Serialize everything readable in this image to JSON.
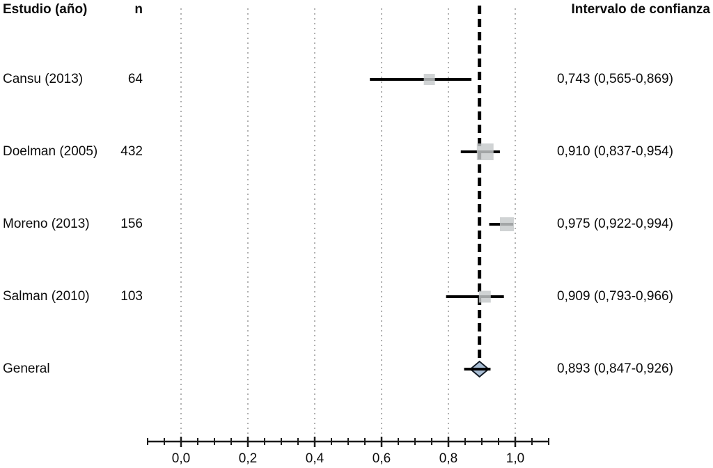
{
  "header": {
    "study_col": "Estudio (año)",
    "n_col": "n",
    "ci_col": "Intervalo de confianza"
  },
  "chart_data": {
    "type": "forest",
    "title": "",
    "x_axis": {
      "range": [
        -0.1,
        1.1
      ],
      "ticks": [
        0.0,
        0.2,
        0.4,
        0.6,
        0.8,
        1.0
      ],
      "tick_labels": [
        "0,0",
        "0,2",
        "0,4",
        "0,6",
        "0,8",
        "1,0"
      ],
      "minor_tick_step": 0.05,
      "grid": true,
      "reference_line": 0.893
    },
    "studies": [
      {
        "label": "Cansu (2013)",
        "n": "64",
        "estimate": 0.743,
        "ci_low": 0.565,
        "ci_high": 0.869,
        "ci_text": "0,743 (0,565-0,869)",
        "marker": "square",
        "marker_size": 16
      },
      {
        "label": "Doelman (2005)",
        "n": "432",
        "estimate": 0.91,
        "ci_low": 0.837,
        "ci_high": 0.954,
        "ci_text": "0,910 (0,837-0,954)",
        "marker": "square",
        "marker_size": 24
      },
      {
        "label": "Moreno (2013)",
        "n": "156",
        "estimate": 0.975,
        "ci_low": 0.922,
        "ci_high": 0.994,
        "ci_text": "0,975 (0,922-0,994)",
        "marker": "square",
        "marker_size": 20
      },
      {
        "label": "Salman (2010)",
        "n": "103",
        "estimate": 0.909,
        "ci_low": 0.793,
        "ci_high": 0.966,
        "ci_text": "0,909 (0,793-0,966)",
        "marker": "square",
        "marker_size": 17
      },
      {
        "label": "General",
        "n": "",
        "estimate": 0.893,
        "ci_low": 0.847,
        "ci_high": 0.926,
        "ci_text": "0,893 (0,847-0,926)",
        "marker": "diamond",
        "marker_size": 26
      }
    ],
    "colors": {
      "marker_fill": "#c6c9cb",
      "diamond_fill": "#a9bed5",
      "diamond_border": "#131c26",
      "grid": "#b0b0b0",
      "line": "#000000",
      "axis": "#1a1a1a",
      "text": "#0b0b0b"
    }
  }
}
